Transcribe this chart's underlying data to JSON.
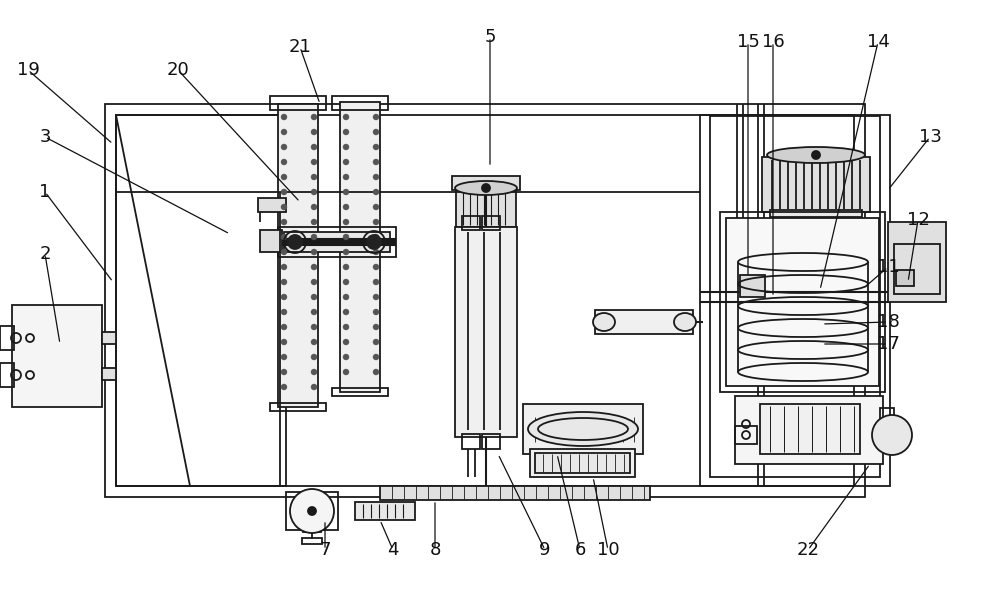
{
  "bg": "#ffffff",
  "lc": "#1a1a1a",
  "lw": 1.3,
  "figw": 10.0,
  "figh": 5.92,
  "dpi": 100,
  "annotations": [
    [
      "19",
      28,
      522,
      113,
      448
    ],
    [
      "3",
      45,
      455,
      230,
      358
    ],
    [
      "1",
      45,
      400,
      113,
      310
    ],
    [
      "2",
      45,
      338,
      60,
      248
    ],
    [
      "20",
      178,
      522,
      300,
      390
    ],
    [
      "21",
      300,
      545,
      320,
      488
    ],
    [
      "5",
      490,
      555,
      490,
      425
    ],
    [
      "15",
      748,
      550,
      748,
      315
    ],
    [
      "16",
      773,
      550,
      773,
      295
    ],
    [
      "14",
      878,
      550,
      820,
      302
    ],
    [
      "13",
      930,
      455,
      888,
      402
    ],
    [
      "12",
      918,
      372,
      908,
      310
    ],
    [
      "11",
      888,
      325,
      865,
      305
    ],
    [
      "18",
      888,
      270,
      822,
      268
    ],
    [
      "17",
      888,
      248,
      822,
      248
    ],
    [
      "7",
      325,
      42,
      325,
      72
    ],
    [
      "4",
      393,
      42,
      380,
      72
    ],
    [
      "8",
      435,
      42,
      435,
      92
    ],
    [
      "9",
      545,
      42,
      498,
      138
    ],
    [
      "6",
      580,
      42,
      557,
      138
    ],
    [
      "10",
      608,
      42,
      593,
      115
    ],
    [
      "22",
      808,
      42,
      870,
      128
    ]
  ]
}
